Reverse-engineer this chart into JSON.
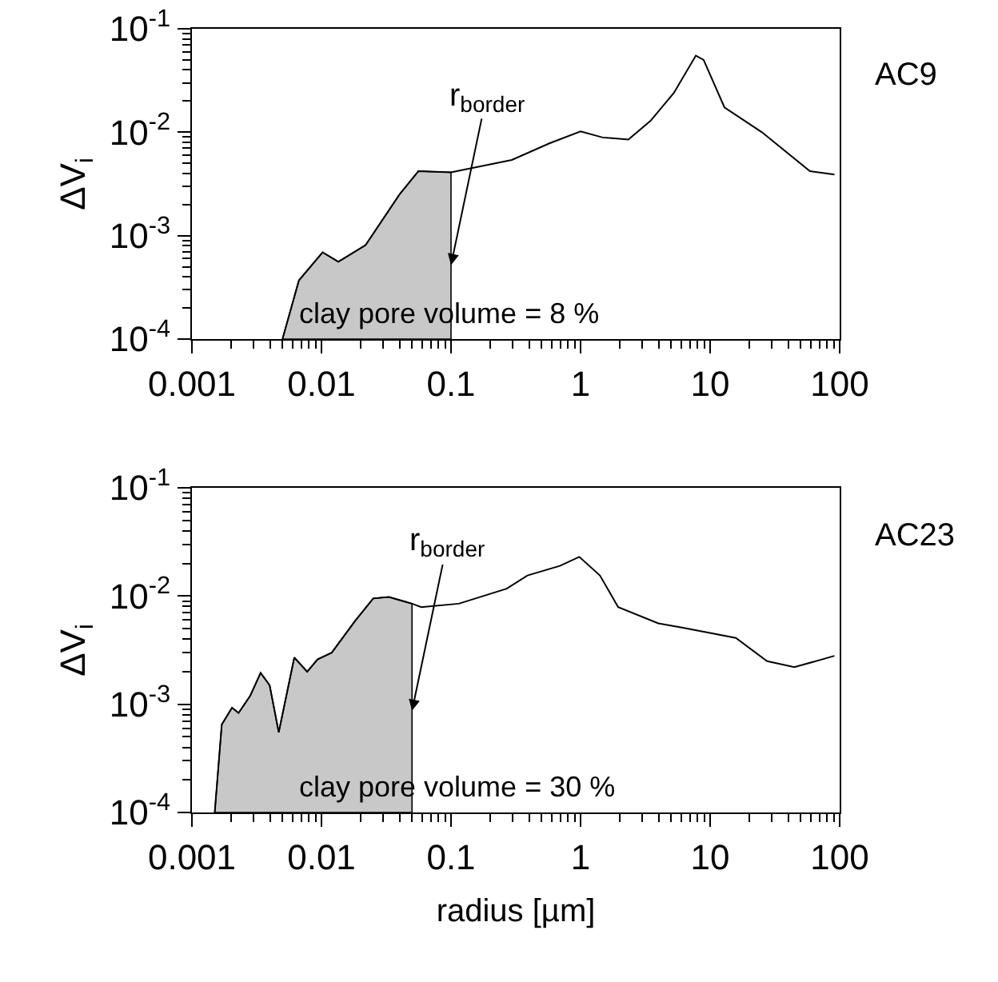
{
  "chart_data": [
    {
      "type": "line",
      "title": "AC9",
      "ylabel": "ΔV$_{i}$",
      "log": "xy",
      "xlim": [
        0.001,
        100
      ],
      "ylim": [
        0.0001,
        0.1
      ],
      "xticks": [
        0.001,
        0.01,
        0.1,
        1,
        10,
        100
      ],
      "yticks": [
        {
          "value": 0.0001,
          "label": "10$^{-4}$"
        },
        {
          "value": 0.001,
          "label": "10$^{-3}$"
        },
        {
          "value": 0.01,
          "label": "10$^{-2}$"
        },
        {
          "value": 0.1,
          "label": "10$^{-1}$"
        }
      ],
      "series": [
        {
          "type": "area",
          "color": "#c8c8c8",
          "x": [
            0.005,
            0.0067,
            0.0102,
            0.0135,
            0.0219,
            0.04,
            0.056,
            0.1
          ],
          "values": [
            0.0001,
            0.00037,
            0.00069,
            0.00056,
            0.00081,
            0.0025,
            0.0042,
            0.0041
          ]
        },
        {
          "color": "#000000",
          "x": [
            0.005,
            0.0067,
            0.0102,
            0.0135,
            0.0219,
            0.04,
            0.056,
            0.1,
            0.295,
            0.575,
            1.0,
            1.48,
            2.34,
            3.47,
            5.25,
            7.76,
            8.91,
            12.9,
            25.1,
            58.9,
            91.2
          ],
          "values": [
            0.0001,
            0.00037,
            0.00069,
            0.00056,
            0.00081,
            0.0025,
            0.0042,
            0.0041,
            0.0054,
            0.0078,
            0.0102,
            0.0089,
            0.0085,
            0.0129,
            0.024,
            0.055,
            0.05,
            0.0174,
            0.01,
            0.0042,
            0.0039
          ]
        }
      ],
      "annotations": [
        {
          "text": "r$_{border}$",
          "x": 0.1,
          "y": 0.00052
        },
        "clay pore volume = 8 %"
      ]
    },
    {
      "type": "line",
      "title": "AC23",
      "ylabel": "ΔV$_{i}$",
      "xlabel": "radius [µm]",
      "log": "xy",
      "xlim": [
        0.001,
        100
      ],
      "ylim": [
        0.0001,
        0.1
      ],
      "xticks": [
        0.001,
        0.01,
        0.1,
        1,
        10,
        100
      ],
      "yticks": [
        {
          "value": 0.0001,
          "label": "10$^{-4}$"
        },
        {
          "value": 0.001,
          "label": "10$^{-3}$"
        },
        {
          "value": 0.01,
          "label": "10$^{-2}$"
        },
        {
          "value": 0.1,
          "label": "10$^{-1}$"
        }
      ],
      "series": [
        {
          "type": "area",
          "color": "#c8c8c8",
          "x": [
            0.0015,
            0.0017,
            0.00204,
            0.00229,
            0.00282,
            0.00339,
            0.00398,
            0.00468,
            0.00617,
            0.00776,
            0.00933,
            0.012,
            0.0182,
            0.0251,
            0.0331,
            0.05
          ],
          "values": [
            0.0001,
            0.00065,
            0.00093,
            0.00083,
            0.0012,
            0.00195,
            0.0015,
            0.00055,
            0.0027,
            0.002,
            0.0026,
            0.003,
            0.0059,
            0.0095,
            0.0098,
            0.0085
          ]
        },
        {
          "color": "#000000",
          "x": [
            0.0015,
            0.0017,
            0.00204,
            0.00229,
            0.00282,
            0.00339,
            0.00398,
            0.00468,
            0.00617,
            0.00776,
            0.00933,
            0.012,
            0.0182,
            0.0251,
            0.0331,
            0.05,
            0.0589,
            0.115,
            0.269,
            0.389,
            0.692,
            0.977,
            1.41,
            1.95,
            3.98,
            6.17,
            15.8,
            27.5,
            44.7,
            91.2
          ],
          "values": [
            0.0001,
            0.00065,
            0.00093,
            0.00083,
            0.0012,
            0.00195,
            0.0015,
            0.00055,
            0.0027,
            0.002,
            0.0026,
            0.003,
            0.0059,
            0.0095,
            0.0098,
            0.0085,
            0.0079,
            0.0085,
            0.0117,
            0.0155,
            0.019,
            0.023,
            0.0155,
            0.0079,
            0.0056,
            0.0051,
            0.0041,
            0.0025,
            0.0022,
            0.0028
          ]
        }
      ],
      "annotations": [
        {
          "text": "r$_{border}$",
          "x": 0.05,
          "y": 0.00087
        },
        "clay pore volume = 30 %"
      ]
    }
  ]
}
